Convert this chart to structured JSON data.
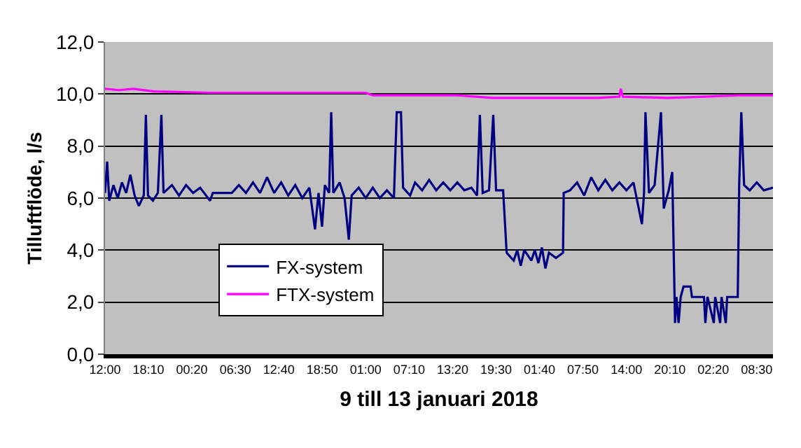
{
  "chart_data": {
    "type": "line",
    "xlabel": "9 till 13 januari 2018",
    "ylabel": "Tilluftflöde, l/s",
    "xlim": [
      "2018-01-09T12:00",
      "2018-01-13T10:48"
    ],
    "xticks": [
      {
        "value": "2018-01-09T12:00",
        "label": "12:00"
      },
      {
        "value": "2018-01-09T18:10",
        "label": "18:10"
      },
      {
        "value": "2018-01-10T00:20",
        "label": "00:20"
      },
      {
        "value": "2018-01-10T06:30",
        "label": "06:30"
      },
      {
        "value": "2018-01-10T12:40",
        "label": "12:40"
      },
      {
        "value": "2018-01-10T18:50",
        "label": "18:50"
      },
      {
        "value": "2018-01-11T01:00",
        "label": "01:00"
      },
      {
        "value": "2018-01-11T07:10",
        "label": "07:10"
      },
      {
        "value": "2018-01-11T13:20",
        "label": "13:20"
      },
      {
        "value": "2018-01-11T19:30",
        "label": "19:30"
      },
      {
        "value": "2018-01-12T01:40",
        "label": "01:40"
      },
      {
        "value": "2018-01-12T07:50",
        "label": "07:50"
      },
      {
        "value": "2018-01-12T14:00",
        "label": "14:00"
      },
      {
        "value": "2018-01-12T20:10",
        "label": "20:10"
      },
      {
        "value": "2018-01-13T02:20",
        "label": "02:20"
      },
      {
        "value": "2018-01-13T08:30",
        "label": "08:30"
      }
    ],
    "ylim": [
      0,
      12
    ],
    "yticks": [
      {
        "value": 0,
        "label": "0,0"
      },
      {
        "value": 2,
        "label": "2,0"
      },
      {
        "value": 4,
        "label": "4,0"
      },
      {
        "value": 6,
        "label": "6,0"
      },
      {
        "value": 8,
        "label": "8,0"
      },
      {
        "value": 10,
        "label": "10,0"
      },
      {
        "value": 12,
        "label": "12,0"
      }
    ],
    "grid": "y",
    "legend": "bottom left",
    "series": [
      {
        "name": "FX-system",
        "color": "#000080",
        "x": [
          "2018-01-09T12:00",
          "2018-01-09T12:18",
          "2018-01-09T12:36",
          "2018-01-09T13:12",
          "2018-01-09T13:48",
          "2018-01-09T14:24",
          "2018-01-09T15:00",
          "2018-01-09T15:36",
          "2018-01-09T16:12",
          "2018-01-09T16:48",
          "2018-01-09T17:30",
          "2018-01-09T17:48",
          "2018-01-09T18:06",
          "2018-01-09T18:48",
          "2018-01-09T19:30",
          "2018-01-09T20:00",
          "2018-01-09T20:18",
          "2018-01-09T21:30",
          "2018-01-09T22:30",
          "2018-01-09T23:30",
          "2018-01-10T00:30",
          "2018-01-10T01:30",
          "2018-01-10T02:54",
          "2018-01-10T03:18",
          "2018-01-10T06:00",
          "2018-01-10T07:00",
          "2018-01-10T08:00",
          "2018-01-10T09:00",
          "2018-01-10T10:00",
          "2018-01-10T11:00",
          "2018-01-10T12:00",
          "2018-01-10T13:00",
          "2018-01-10T14:00",
          "2018-01-10T15:00",
          "2018-01-10T16:00",
          "2018-01-10T17:00",
          "2018-01-10T17:48",
          "2018-01-10T18:18",
          "2018-01-10T18:48",
          "2018-01-10T19:12",
          "2018-01-10T19:48",
          "2018-01-10T20:06",
          "2018-01-10T20:24",
          "2018-01-10T21:18",
          "2018-01-10T22:00",
          "2018-01-10T22:36",
          "2018-01-10T23:00",
          "2018-01-11T00:00",
          "2018-01-11T01:00",
          "2018-01-11T02:00",
          "2018-01-11T03:00",
          "2018-01-11T04:00",
          "2018-01-11T05:00",
          "2018-01-11T05:24",
          "2018-01-11T06:00",
          "2018-01-11T06:18",
          "2018-01-11T07:18",
          "2018-01-11T08:00",
          "2018-01-11T09:00",
          "2018-01-11T10:00",
          "2018-01-11T11:00",
          "2018-01-11T12:00",
          "2018-01-11T13:00",
          "2018-01-11T14:00",
          "2018-01-11T15:00",
          "2018-01-11T16:00",
          "2018-01-11T16:48",
          "2018-01-11T17:12",
          "2018-01-11T17:36",
          "2018-01-11T18:30",
          "2018-01-11T19:06",
          "2018-01-11T19:30",
          "2018-01-11T20:30",
          "2018-01-11T21:00",
          "2018-01-11T22:00",
          "2018-01-11T22:30",
          "2018-01-11T23:00",
          "2018-01-11T23:30",
          "2018-01-12T00:30",
          "2018-01-12T01:00",
          "2018-01-12T01:30",
          "2018-01-12T02:00",
          "2018-01-12T02:30",
          "2018-01-12T03:00",
          "2018-01-12T04:00",
          "2018-01-12T05:00",
          "2018-01-12T05:06",
          "2018-01-12T06:00",
          "2018-01-12T07:00",
          "2018-01-12T08:00",
          "2018-01-12T09:00",
          "2018-01-12T10:00",
          "2018-01-12T11:00",
          "2018-01-12T12:00",
          "2018-01-12T13:00",
          "2018-01-12T14:00",
          "2018-01-12T15:00",
          "2018-01-12T16:12",
          "2018-01-12T16:30",
          "2018-01-12T16:42",
          "2018-01-12T17:12",
          "2018-01-12T18:00",
          "2018-01-12T18:54",
          "2018-01-12T19:18",
          "2018-01-12T20:00",
          "2018-01-12T20:30",
          "2018-01-12T20:54",
          "2018-01-12T21:06",
          "2018-01-12T21:24",
          "2018-01-12T21:42",
          "2018-01-12T22:06",
          "2018-01-12T23:06",
          "2018-01-12T23:18",
          "2018-01-13T01:00",
          "2018-01-13T01:12",
          "2018-01-13T01:30",
          "2018-01-13T02:24",
          "2018-01-13T02:36",
          "2018-01-13T03:18",
          "2018-01-13T03:30",
          "2018-01-13T04:06",
          "2018-01-13T04:18",
          "2018-01-13T05:48",
          "2018-01-13T06:00",
          "2018-01-13T06:18",
          "2018-01-13T06:42",
          "2018-01-13T07:30",
          "2018-01-13T08:30",
          "2018-01-13T09:30",
          "2018-01-13T10:48"
        ],
        "values": [
          6.2,
          7.4,
          5.9,
          6.5,
          6.0,
          6.6,
          6.2,
          6.9,
          6.1,
          5.7,
          6.1,
          9.2,
          6.1,
          5.9,
          6.2,
          9.2,
          6.2,
          6.5,
          6.1,
          6.5,
          6.2,
          6.4,
          5.9,
          6.2,
          6.2,
          6.5,
          6.2,
          6.6,
          6.2,
          6.8,
          6.2,
          6.6,
          6.1,
          6.5,
          6.0,
          6.4,
          4.8,
          6.2,
          4.9,
          6.5,
          6.2,
          9.3,
          6.2,
          6.6,
          6.0,
          4.4,
          6.1,
          6.4,
          6.0,
          6.4,
          6.0,
          6.3,
          6.0,
          9.3,
          9.3,
          6.4,
          6.1,
          6.6,
          6.3,
          6.7,
          6.3,
          6.6,
          6.3,
          6.6,
          6.3,
          6.4,
          6.1,
          9.2,
          6.2,
          6.3,
          9.2,
          6.3,
          6.3,
          3.9,
          3.6,
          4.0,
          3.4,
          4.0,
          3.6,
          4.0,
          3.5,
          4.1,
          3.3,
          3.9,
          3.7,
          3.9,
          6.2,
          6.3,
          6.6,
          6.1,
          6.8,
          6.3,
          6.7,
          6.3,
          6.6,
          6.3,
          6.6,
          5.0,
          6.2,
          9.3,
          6.2,
          6.5,
          9.3,
          5.6,
          6.3,
          7.0,
          1.2,
          2.2,
          1.2,
          2.2,
          2.6,
          2.6,
          2.2,
          2.2,
          1.2,
          2.2,
          1.2,
          2.2,
          1.2,
          2.2,
          1.2,
          2.2,
          2.2,
          6.5,
          9.3,
          6.5,
          6.3,
          6.6,
          6.3,
          6.4
        ]
      },
      {
        "name": "FTX-system",
        "color": "#ff00ff",
        "x": [
          "2018-01-09T12:00",
          "2018-01-09T14:00",
          "2018-01-09T16:00",
          "2018-01-09T19:00",
          "2018-01-10T03:00",
          "2018-01-10T13:00",
          "2018-01-11T01:00",
          "2018-01-11T02:00",
          "2018-01-11T08:00",
          "2018-01-11T14:00",
          "2018-01-11T19:00",
          "2018-01-12T00:00",
          "2018-01-12T05:00",
          "2018-01-12T10:00",
          "2018-01-12T13:00",
          "2018-01-12T13:12",
          "2018-01-12T13:30",
          "2018-01-12T20:00",
          "2018-01-13T01:00",
          "2018-01-13T06:00",
          "2018-01-13T10:48"
        ],
        "values": [
          10.2,
          10.15,
          10.2,
          10.1,
          10.05,
          10.05,
          10.05,
          9.95,
          9.95,
          9.95,
          9.85,
          9.85,
          9.85,
          9.85,
          9.9,
          10.2,
          9.9,
          9.85,
          9.9,
          9.95,
          9.95
        ]
      }
    ]
  }
}
